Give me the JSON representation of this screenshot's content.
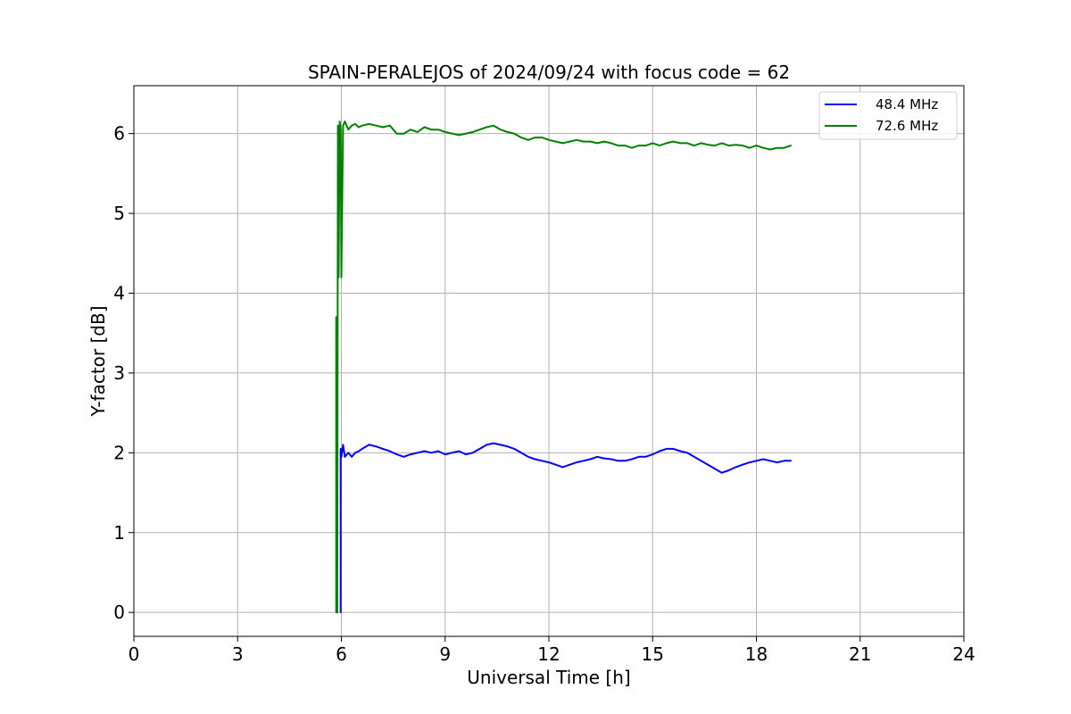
{
  "chart_data": {
    "type": "line",
    "title": "SPAIN-PERALEJOS of 2024/09/24 with focus code = 62",
    "xlabel": "Universal Time [h]",
    "ylabel": "Y-factor [dB]",
    "xlim": [
      0,
      24
    ],
    "ylim": [
      -0.3,
      6.6
    ],
    "xticks": [
      "0",
      "3",
      "6",
      "9",
      "12",
      "15",
      "18",
      "21",
      "24"
    ],
    "yticks": [
      "0",
      "1",
      "2",
      "3",
      "4",
      "5",
      "6"
    ],
    "grid": true,
    "legend_position": "top-right",
    "series": [
      {
        "name": "48.4 MHz",
        "color": "#0000ff",
        "x": [
          5.98,
          5.98,
          6.0,
          6.05,
          6.1,
          6.2,
          6.3,
          6.4,
          6.5,
          6.6,
          6.8,
          7.0,
          7.2,
          7.4,
          7.6,
          7.8,
          8.0,
          8.2,
          8.4,
          8.6,
          8.8,
          9.0,
          9.2,
          9.4,
          9.6,
          9.8,
          10.0,
          10.2,
          10.4,
          10.6,
          10.8,
          11.0,
          11.2,
          11.4,
          11.6,
          11.8,
          12.0,
          12.2,
          12.4,
          12.6,
          12.8,
          13.0,
          13.2,
          13.4,
          13.6,
          13.8,
          14.0,
          14.2,
          14.4,
          14.6,
          14.8,
          15.0,
          15.2,
          15.4,
          15.6,
          15.8,
          16.0,
          16.2,
          16.4,
          16.6,
          16.8,
          17.0,
          17.2,
          17.4,
          17.6,
          17.8,
          18.0,
          18.2,
          18.4,
          18.6,
          18.8,
          19.0
        ],
        "y": [
          0.0,
          2.05,
          1.95,
          2.1,
          1.95,
          2.0,
          1.95,
          2.0,
          2.02,
          2.05,
          2.1,
          2.08,
          2.05,
          2.02,
          1.98,
          1.95,
          1.98,
          2.0,
          2.02,
          2.0,
          2.02,
          1.98,
          2.0,
          2.02,
          1.98,
          2.0,
          2.05,
          2.1,
          2.12,
          2.1,
          2.08,
          2.05,
          2.0,
          1.95,
          1.92,
          1.9,
          1.88,
          1.85,
          1.82,
          1.85,
          1.88,
          1.9,
          1.92,
          1.95,
          1.93,
          1.92,
          1.9,
          1.9,
          1.92,
          1.95,
          1.95,
          1.98,
          2.02,
          2.05,
          2.05,
          2.02,
          2.0,
          1.95,
          1.9,
          1.85,
          1.8,
          1.75,
          1.78,
          1.82,
          1.85,
          1.88,
          1.9,
          1.92,
          1.9,
          1.88,
          1.9,
          1.9
        ]
      },
      {
        "name": "72.6 MHz",
        "color": "#008000",
        "x": [
          5.85,
          5.85,
          5.88,
          5.9,
          5.92,
          5.95,
          5.98,
          6.0,
          6.05,
          6.1,
          6.2,
          6.3,
          6.4,
          6.5,
          6.6,
          6.8,
          7.0,
          7.2,
          7.4,
          7.6,
          7.8,
          8.0,
          8.2,
          8.4,
          8.6,
          8.8,
          9.0,
          9.2,
          9.4,
          9.6,
          9.8,
          10.0,
          10.2,
          10.4,
          10.6,
          10.8,
          11.0,
          11.2,
          11.4,
          11.6,
          11.8,
          12.0,
          12.2,
          12.4,
          12.6,
          12.8,
          13.0,
          13.2,
          13.4,
          13.6,
          13.8,
          14.0,
          14.2,
          14.4,
          14.6,
          14.8,
          15.0,
          15.2,
          15.4,
          15.6,
          15.8,
          16.0,
          16.2,
          16.4,
          16.6,
          16.8,
          17.0,
          17.2,
          17.4,
          17.6,
          17.8,
          18.0,
          18.2,
          18.4,
          18.6,
          18.8,
          19.0
        ],
        "y": [
          0.0,
          3.7,
          0.0,
          6.1,
          4.2,
          6.15,
          6.05,
          4.2,
          6.1,
          6.15,
          6.05,
          6.1,
          6.12,
          6.08,
          6.1,
          6.12,
          6.1,
          6.08,
          6.1,
          6.0,
          6.0,
          6.05,
          6.02,
          6.08,
          6.05,
          6.05,
          6.02,
          6.0,
          5.98,
          6.0,
          6.02,
          6.05,
          6.08,
          6.1,
          6.05,
          6.02,
          6.0,
          5.95,
          5.92,
          5.95,
          5.95,
          5.92,
          5.9,
          5.88,
          5.9,
          5.92,
          5.9,
          5.9,
          5.88,
          5.9,
          5.88,
          5.85,
          5.85,
          5.82,
          5.85,
          5.85,
          5.88,
          5.85,
          5.88,
          5.9,
          5.88,
          5.88,
          5.85,
          5.88,
          5.86,
          5.85,
          5.88,
          5.85,
          5.86,
          5.85,
          5.82,
          5.85,
          5.82,
          5.8,
          5.82,
          5.82,
          5.85
        ]
      }
    ]
  }
}
